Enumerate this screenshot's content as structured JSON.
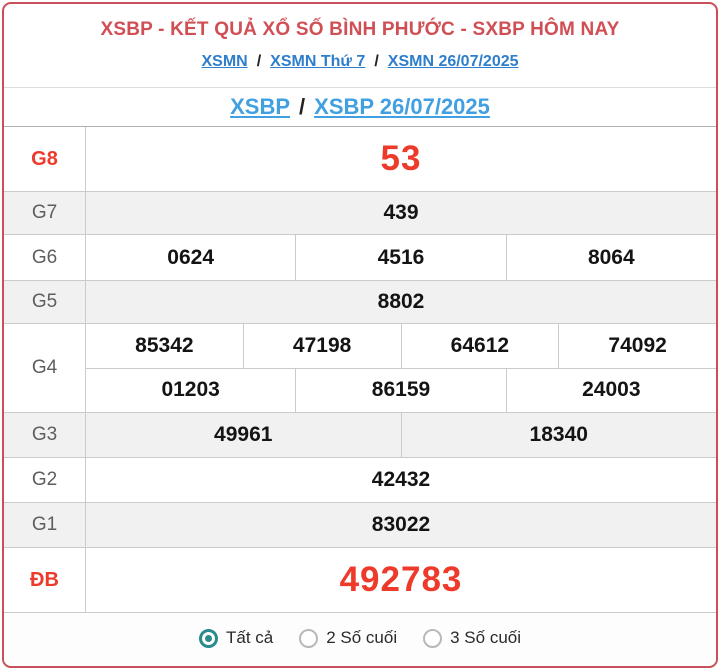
{
  "header": {
    "title": "XSBP - KẾT QUẢ XỔ SỐ BÌNH PHƯỚC - SXBP HÔM NAY",
    "breadcrumb_separator": "/",
    "breadcrumb": [
      {
        "label": "XSMN"
      },
      {
        "label": "XSMN Thứ 7"
      },
      {
        "label": "XSMN 26/07/2025"
      }
    ]
  },
  "subtitle": {
    "separator": "/",
    "links": [
      {
        "label": "XSBP"
      },
      {
        "label": "XSBP 26/07/2025"
      }
    ]
  },
  "table": {
    "rows": [
      {
        "prize": "G8",
        "highlight": true,
        "numbers": [
          [
            "53"
          ]
        ]
      },
      {
        "prize": "G7",
        "highlight": false,
        "numbers": [
          [
            "439"
          ]
        ]
      },
      {
        "prize": "G6",
        "highlight": false,
        "numbers": [
          [
            "0624",
            "4516",
            "8064"
          ]
        ]
      },
      {
        "prize": "G5",
        "highlight": false,
        "numbers": [
          [
            "8802"
          ]
        ]
      },
      {
        "prize": "G4",
        "highlight": false,
        "numbers": [
          [
            "85342",
            "47198",
            "64612",
            "74092"
          ],
          [
            "01203",
            "86159",
            "24003"
          ]
        ]
      },
      {
        "prize": "G3",
        "highlight": false,
        "numbers": [
          [
            "49961",
            "18340"
          ]
        ]
      },
      {
        "prize": "G2",
        "highlight": false,
        "numbers": [
          [
            "42432"
          ]
        ]
      },
      {
        "prize": "G1",
        "highlight": false,
        "numbers": [
          [
            "83022"
          ]
        ]
      },
      {
        "prize": "ĐB",
        "highlight": true,
        "numbers": [
          [
            "492783"
          ]
        ]
      }
    ]
  },
  "footer": {
    "options": [
      {
        "label": "Tất cả",
        "selected": true
      },
      {
        "label": "2 Số cuối",
        "selected": false
      },
      {
        "label": "3 Số cuối",
        "selected": false
      }
    ]
  },
  "colors": {
    "border_red": "#c7505a",
    "header_red": "#d04f55",
    "number_red": "#ee3a2b",
    "link_blue": "#2d7ecb",
    "subtitle_blue": "#41a0e2",
    "label_gray": "#5e5e5e",
    "value_black": "#141414",
    "row_alt_bg": "#f1f1f1",
    "cell_border": "#cbcbcb",
    "table_top_border": "#b0b0b0",
    "header_divider": "#dddddd",
    "radio_teal": "#2b8b8c",
    "radio_gray": "#b8b8b8",
    "footer_text": "#2a2a2a"
  }
}
